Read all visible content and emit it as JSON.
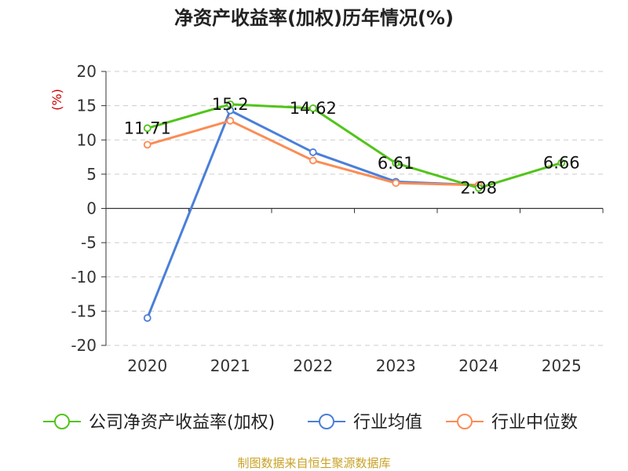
{
  "chart_data": {
    "type": "line",
    "title": "净资产收益率(加权)历年情况(%)",
    "ylabel": "(%)",
    "xlabel": "",
    "categories": [
      "2020",
      "2021",
      "2022",
      "2023",
      "2024",
      "2025"
    ],
    "ylim": [
      -20,
      20
    ],
    "yticks": [
      20,
      15,
      10,
      5,
      0,
      -5,
      -10,
      -15,
      -20
    ],
    "grid": true,
    "legend_position": "bottom",
    "series": [
      {
        "name": "公司净资产收益率(加权)",
        "color": "#52c41a",
        "values": [
          11.71,
          15.2,
          14.62,
          6.61,
          2.98,
          6.66
        ],
        "labels": [
          "11.71",
          "15.2",
          "14.62",
          "6.61",
          "2.98",
          "6.66"
        ]
      },
      {
        "name": "行业均值",
        "color": "#4a7fd8",
        "values": [
          -16.0,
          14.3,
          8.2,
          3.9,
          3.4,
          null
        ]
      },
      {
        "name": "行业中位数",
        "color": "#fb8c55",
        "values": [
          9.3,
          12.8,
          7.0,
          3.7,
          3.4,
          null
        ]
      }
    ],
    "source": "制图数据来自恒生聚源数据库",
    "colors": {
      "unit": "#cc0000",
      "source": "#c9a227",
      "grid": "#cccccc",
      "axis": "#333333"
    }
  }
}
